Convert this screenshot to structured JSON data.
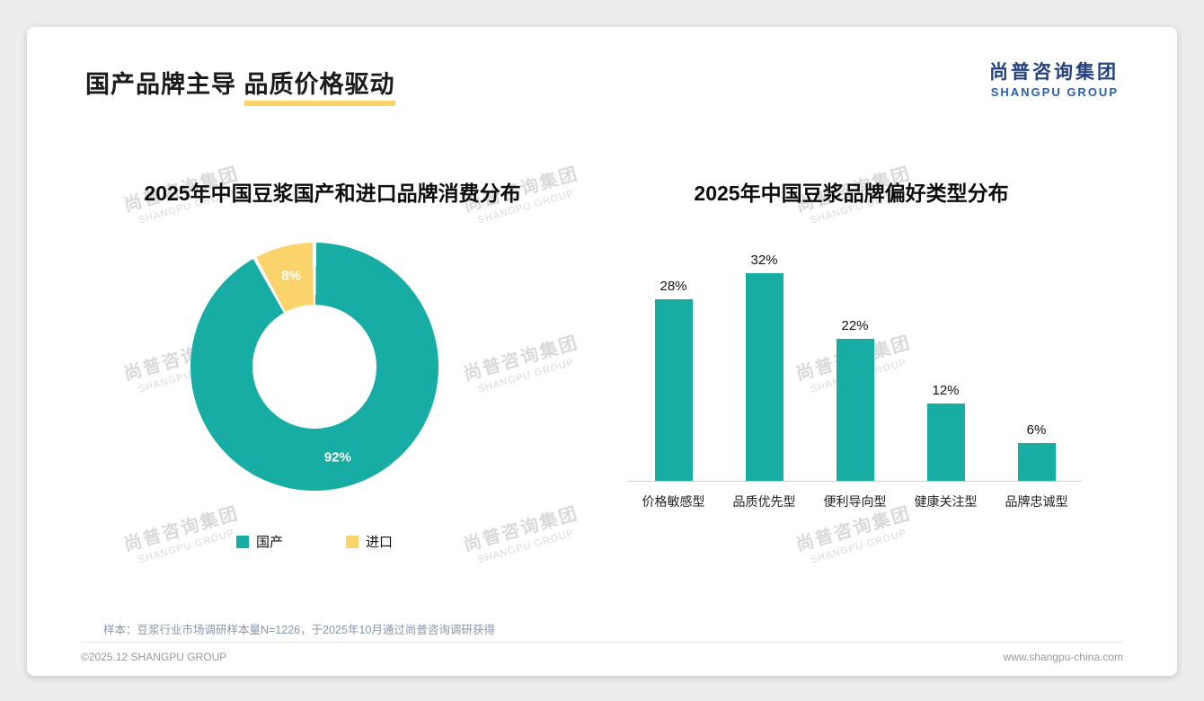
{
  "header": {
    "title_prefix": "国产品牌主导 ",
    "title_highlight": "品质价格驱动",
    "logo_cn": "尚普咨询集团",
    "logo_en": "SHANGPU GROUP"
  },
  "watermark": {
    "cn": "尚普咨询集团",
    "en": "SHANGPU GROUP"
  },
  "colors": {
    "teal": "#18ADA4",
    "yellow": "#FAD46B",
    "underline": "#FAD46B"
  },
  "chart_data": [
    {
      "type": "pie",
      "donut": true,
      "title": "2025年中国豆浆国产和进口品牌消费分布",
      "labels": [
        "国产",
        "进口"
      ],
      "values": [
        92,
        8
      ],
      "value_labels": [
        "92%",
        "8%"
      ],
      "colors": [
        "#18ADA4",
        "#FAD46B"
      ],
      "legend_position": "bottom",
      "start_angle_deg": 0,
      "direction": "clockwise"
    },
    {
      "type": "bar",
      "title": "2025年中国豆浆品牌偏好类型分布",
      "categories": [
        "价格敏感型",
        "品质优先型",
        "便利导向型",
        "健康关注型",
        "品牌忠诚型"
      ],
      "values": [
        28,
        32,
        22,
        12,
        6
      ],
      "value_labels": [
        "28%",
        "32%",
        "22%",
        "12%",
        "6%"
      ],
      "bar_color": "#18ADA4",
      "xlabel": "",
      "ylabel": "",
      "ylim": [
        0,
        35
      ],
      "grid": false,
      "legend": "none"
    }
  ],
  "footer": {
    "sample_note": "样本：豆浆行业市场调研样本量N=1226，于2025年10月通过尚普咨询调研获得",
    "left": "©2025.12 SHANGPU GROUP",
    "right": "www.shangpu-china.com"
  }
}
